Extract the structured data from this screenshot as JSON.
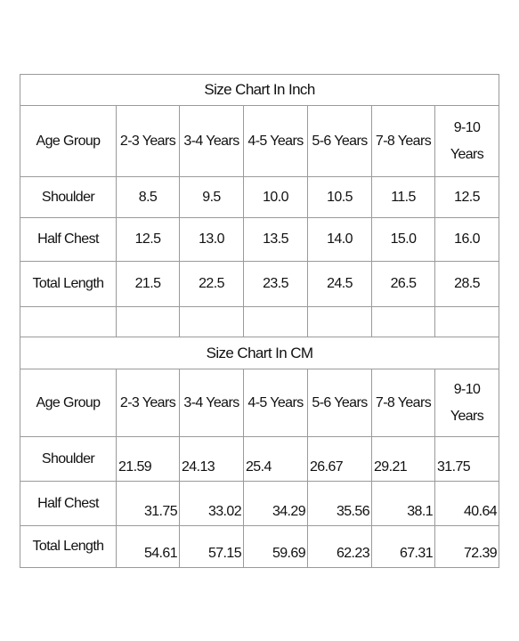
{
  "tables": [
    {
      "title": "Size Chart In Inch",
      "header": [
        "Age Group",
        "2-3 Years",
        "3-4 Years",
        "4-5 Years",
        "5-6 Years",
        "7-8 Years",
        "9-10 Years"
      ],
      "rows": [
        [
          "Shoulder",
          "8.5",
          "9.5",
          "10.0",
          "10.5",
          "11.5",
          "12.5"
        ],
        [
          "Half Chest",
          "12.5",
          "13.0",
          "13.5",
          "14.0",
          "15.0",
          "16.0"
        ],
        [
          "Total Length",
          "21.5",
          "22.5",
          "23.5",
          "24.5",
          "26.5",
          "28.5"
        ]
      ]
    },
    {
      "title": "Size Chart In CM",
      "header": [
        "Age Group",
        "2-3 Years",
        "3-4 Years",
        "4-5 Years",
        "5-6 Years",
        "7-8 Years",
        "9-10 Years"
      ],
      "rows": [
        [
          "Shoulder",
          "21.59",
          "24.13",
          "25.4",
          "26.67",
          "29.21",
          "31.75"
        ],
        [
          "Half Chest",
          "31.75",
          "33.02",
          "34.29",
          "35.56",
          "38.1",
          "40.64"
        ],
        [
          "Total Length",
          "54.61",
          "57.15",
          "59.69",
          "62.23",
          "67.31",
          "72.39"
        ]
      ]
    }
  ]
}
